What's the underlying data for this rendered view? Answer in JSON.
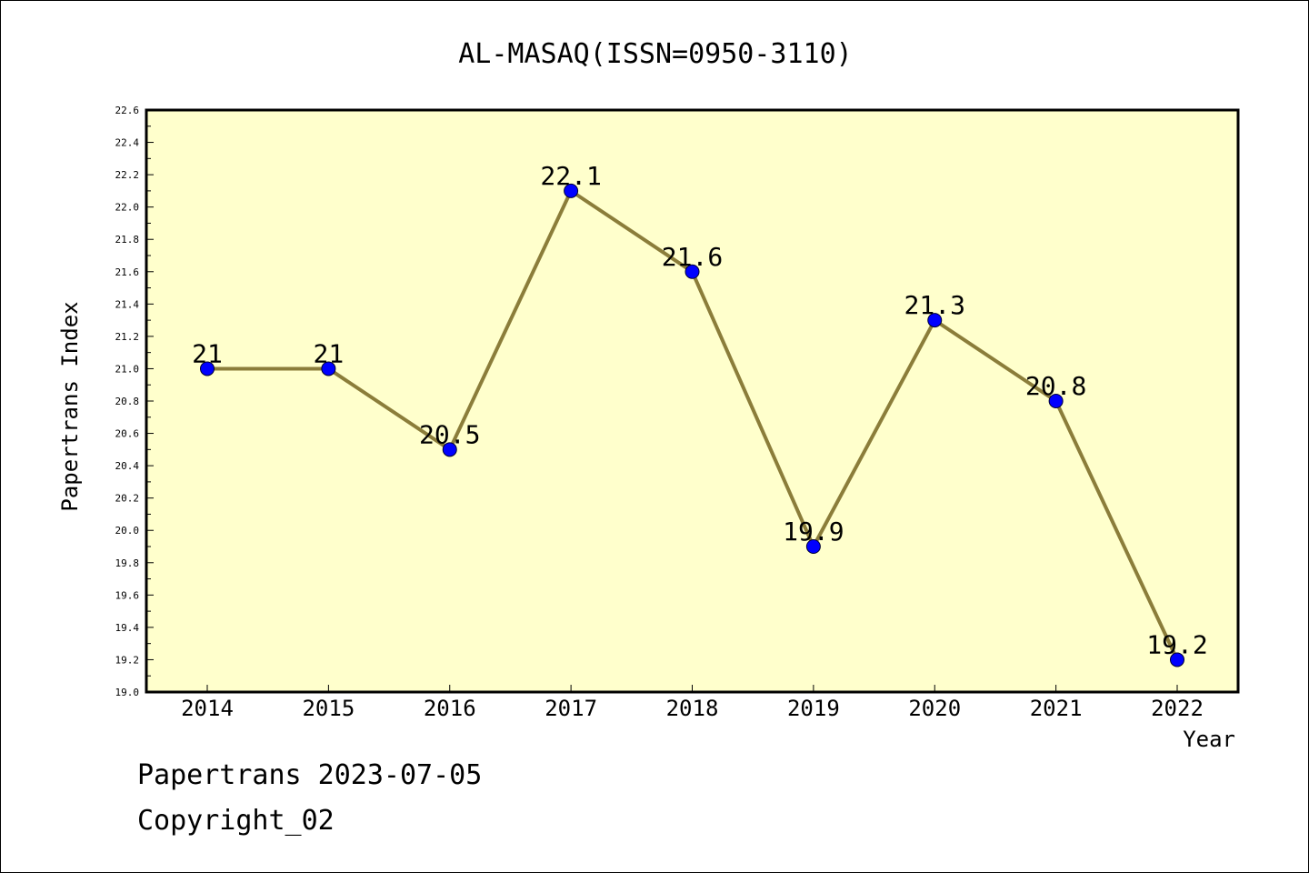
{
  "chart_data": {
    "type": "line",
    "title": "AL-MASAQ(ISSN=0950-3110)",
    "xlabel": "Year",
    "ylabel": "Papertrans Index",
    "categories": [
      "2014",
      "2015",
      "2016",
      "2017",
      "2018",
      "2019",
      "2020",
      "2021",
      "2022"
    ],
    "series": [
      {
        "values": [
          21,
          21,
          20.5,
          22.1,
          21.6,
          19.9,
          21.3,
          20.8,
          19.2
        ],
        "point_labels": [
          "21",
          "21",
          "20.5",
          "22.1",
          "21.6",
          "19.9",
          "21.3",
          "20.8",
          "19.2"
        ]
      }
    ],
    "ylim": [
      19.0,
      22.6
    ],
    "yticks": [
      "19.0",
      "19.2",
      "19.4",
      "19.6",
      "19.8",
      "20.0",
      "20.2",
      "20.4",
      "20.6",
      "20.8",
      "21.0",
      "21.2",
      "21.4",
      "21.6",
      "21.8",
      "22.0",
      "22.2",
      "22.4",
      "22.6"
    ],
    "grid": false,
    "legend": "none",
    "colors": {
      "plot_background": "#ffffcc",
      "line": "#8b7d3a",
      "marker": "#0000ff"
    }
  },
  "footer": {
    "date_text": "Papertrans 2023-07-05",
    "copyright_text": "Copyright_02"
  }
}
